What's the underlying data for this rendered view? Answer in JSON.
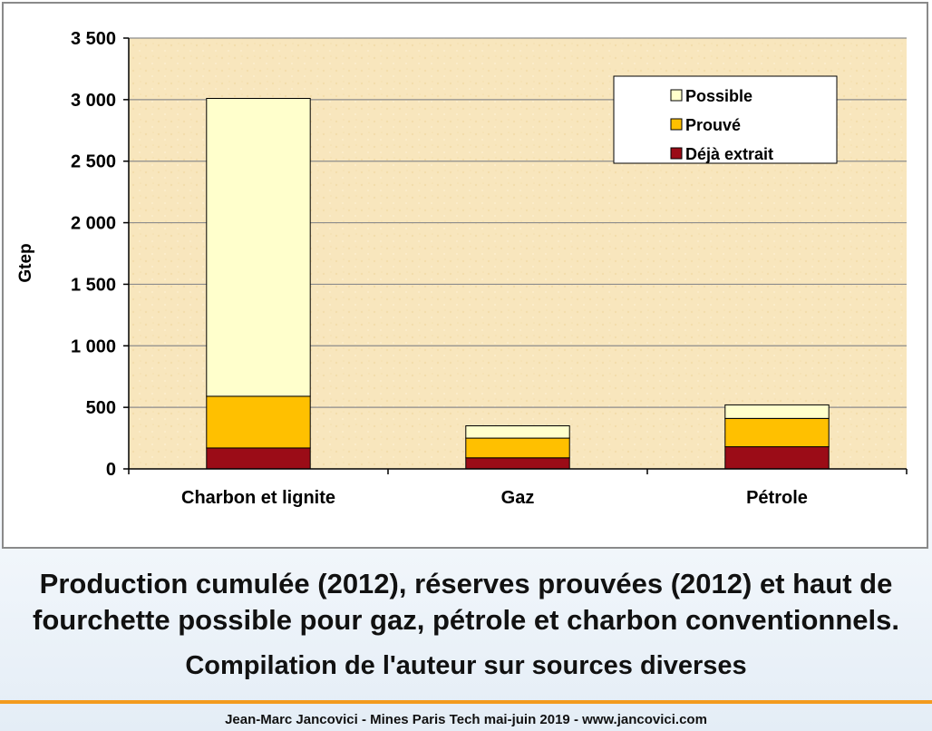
{
  "chart_data": {
    "type": "bar",
    "stacked": true,
    "title": "",
    "xlabel": "",
    "ylabel": "Gtep",
    "ylim": [
      0,
      3500
    ],
    "yticks": [
      0,
      500,
      1000,
      1500,
      2000,
      2500,
      3000,
      3500
    ],
    "ytick_labels": [
      "0",
      "500",
      "1 000",
      "1 500",
      "2 000",
      "2 500",
      "3 000",
      "3 500"
    ],
    "categories": [
      "Charbon et lignite",
      "Gaz",
      "Pétrole"
    ],
    "series": [
      {
        "name": "Déjà extrait",
        "color": "#9b0c17",
        "values": [
          170,
          90,
          180
        ]
      },
      {
        "name": "Prouvé",
        "color": "#ffc000",
        "values": [
          420,
          160,
          230
        ]
      },
      {
        "name": "Possible",
        "color": "#ffffcc",
        "values": [
          2420,
          100,
          110
        ]
      }
    ],
    "legend_order": [
      "Possible",
      "Prouvé",
      "Déjà extrait"
    ],
    "legend_position": "top-right",
    "grid": true,
    "plot_background": "#f8e6bd"
  },
  "caption": {
    "line1": "Production cumulée (2012), réserves prouvées (2012) et haut de",
    "line2": "fourchette possible pour gaz, pétrole et charbon conventionnels.",
    "source": "Compilation de l'auteur sur sources diverses"
  },
  "footer": {
    "text": "Jean-Marc Jancovici - Mines Paris Tech mai-juin 2019 - www.jancovici.com"
  },
  "colors": {
    "accent_rule": "#f39b1f"
  }
}
